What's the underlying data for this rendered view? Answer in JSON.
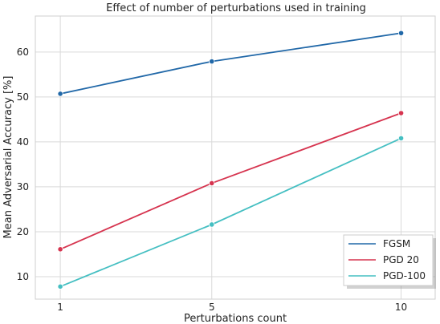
{
  "chart_data": {
    "type": "line",
    "title": "Effect of number of perturbations used in training",
    "xlabel": "Perturbations count",
    "ylabel": "Mean Adversarial Accuracy [%]",
    "x": [
      1,
      5,
      10
    ],
    "xticks": [
      "1",
      "5",
      "10"
    ],
    "yticks": [
      10,
      20,
      30,
      40,
      50,
      60
    ],
    "ylim": [
      5,
      68
    ],
    "grid": true,
    "legend_position": "bottom-right",
    "series": [
      {
        "name": "FGSM",
        "values": [
          50.7,
          57.9,
          64.2
        ],
        "color": "#2168a8"
      },
      {
        "name": "PGD 20",
        "values": [
          16.1,
          30.8,
          46.4
        ],
        "color": "#d6344f"
      },
      {
        "name": "PGD-100",
        "values": [
          7.8,
          21.6,
          40.8
        ],
        "color": "#45bfc2"
      }
    ]
  }
}
